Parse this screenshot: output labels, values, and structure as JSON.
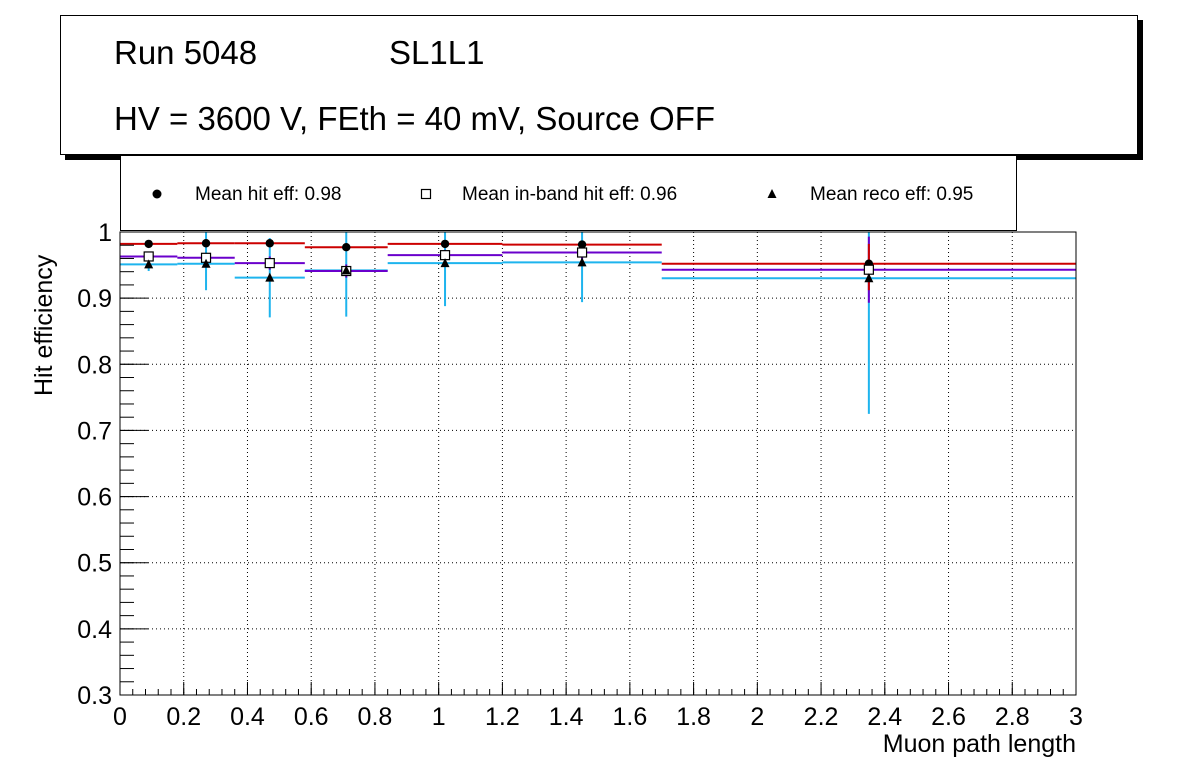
{
  "header": {
    "run": "Run 5048",
    "layer": "SL1L1",
    "conditions": "HV = 3600 V, FEth = 40 mV, Source OFF"
  },
  "legend": {
    "hit": "Mean hit  eff: 0.98",
    "inband": "Mean in-band hit eff: 0.96",
    "reco": "Mean reco eff: 0.95"
  },
  "colors": {
    "hit": "#cc0000",
    "inband": "#6a00cc",
    "reco": "#1eb4ee",
    "axis": "#000000"
  },
  "chart_data": {
    "type": "scatter",
    "xlabel": "Muon path length",
    "ylabel": "Hit efficiency",
    "xlim": [
      0,
      3
    ],
    "ylim": [
      0.3,
      1.0
    ],
    "grid": true,
    "x_ticks": [
      "0",
      "0.2",
      "0.4",
      "0.6",
      "0.8",
      "1",
      "1.2",
      "1.4",
      "1.6",
      "1.8",
      "2",
      "2.2",
      "2.4",
      "2.6",
      "2.8",
      "3"
    ],
    "y_ticks": [
      "0.3",
      "0.4",
      "0.5",
      "0.6",
      "0.7",
      "0.8",
      "0.9",
      "1"
    ],
    "bins": [
      [
        0,
        0.18
      ],
      [
        0.18,
        0.36
      ],
      [
        0.36,
        0.58
      ],
      [
        0.58,
        0.84
      ],
      [
        0.84,
        1.2
      ],
      [
        1.2,
        1.7
      ],
      [
        1.7,
        3.0
      ]
    ],
    "x": [
      0.09,
      0.27,
      0.47,
      0.71,
      1.02,
      1.45,
      2.35
    ],
    "series": [
      {
        "name": "Mean hit eff",
        "key": "hit",
        "marker": "circle",
        "values": [
          0.982,
          0.983,
          0.983,
          0.977,
          0.982,
          0.981,
          0.952
        ],
        "err_low": [
          0.003,
          0.003,
          0.005,
          0.005,
          0.004,
          0.006,
          0.04
        ],
        "err_high": [
          0.003,
          0.003,
          0.005,
          0.005,
          0.004,
          0.006,
          0.03
        ]
      },
      {
        "name": "Mean in-band hit eff",
        "key": "inband",
        "marker": "square",
        "values": [
          0.963,
          0.961,
          0.953,
          0.941,
          0.965,
          0.969,
          0.943
        ],
        "err_low": [
          0.005,
          0.005,
          0.01,
          0.01,
          0.008,
          0.01,
          0.05
        ],
        "err_high": [
          0.005,
          0.005,
          0.01,
          0.01,
          0.008,
          0.01,
          0.05
        ]
      },
      {
        "name": "Mean reco eff",
        "key": "reco",
        "marker": "triangle",
        "values": [
          0.951,
          0.952,
          0.931,
          0.942,
          0.953,
          0.954,
          0.93
        ],
        "err_low": [
          0.01,
          0.04,
          0.06,
          0.07,
          0.065,
          0.06,
          0.205
        ],
        "err_high": [
          0.01,
          0.05,
          0.06,
          0.07,
          0.06,
          0.05,
          0.07
        ]
      }
    ]
  }
}
